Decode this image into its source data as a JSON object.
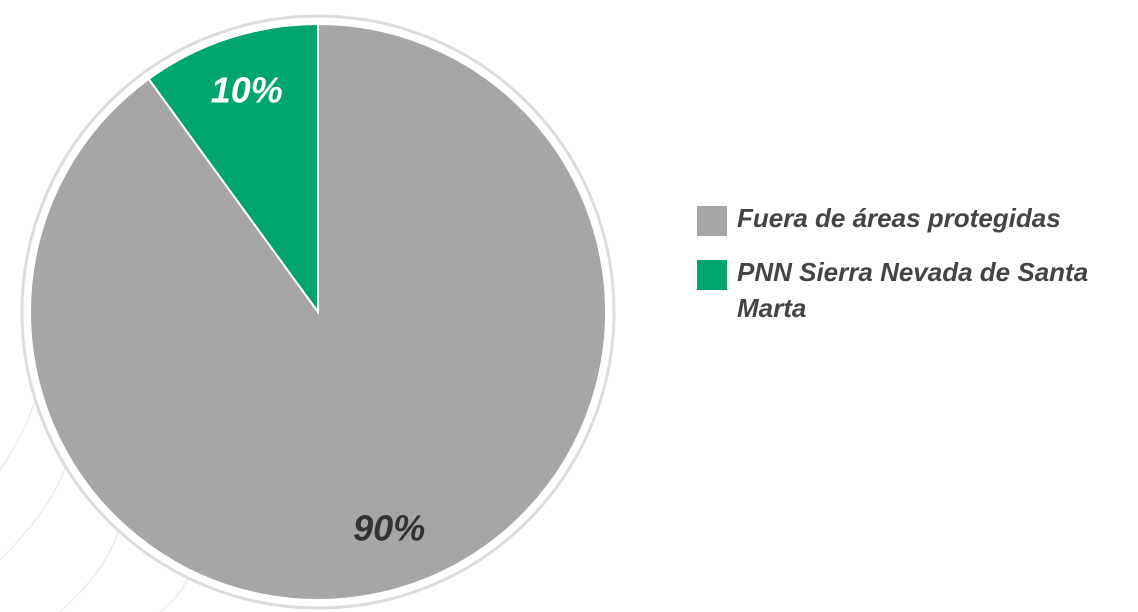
{
  "chart_data": {
    "type": "pie",
    "categories": [
      "Fuera de áreas protegidas",
      "PNN Sierra Nevada de Santa Marta"
    ],
    "values": [
      90,
      10
    ],
    "value_labels": [
      "90%",
      "10%"
    ],
    "colors": [
      "#a6a6a6",
      "#00a46f"
    ],
    "legend": "right"
  }
}
